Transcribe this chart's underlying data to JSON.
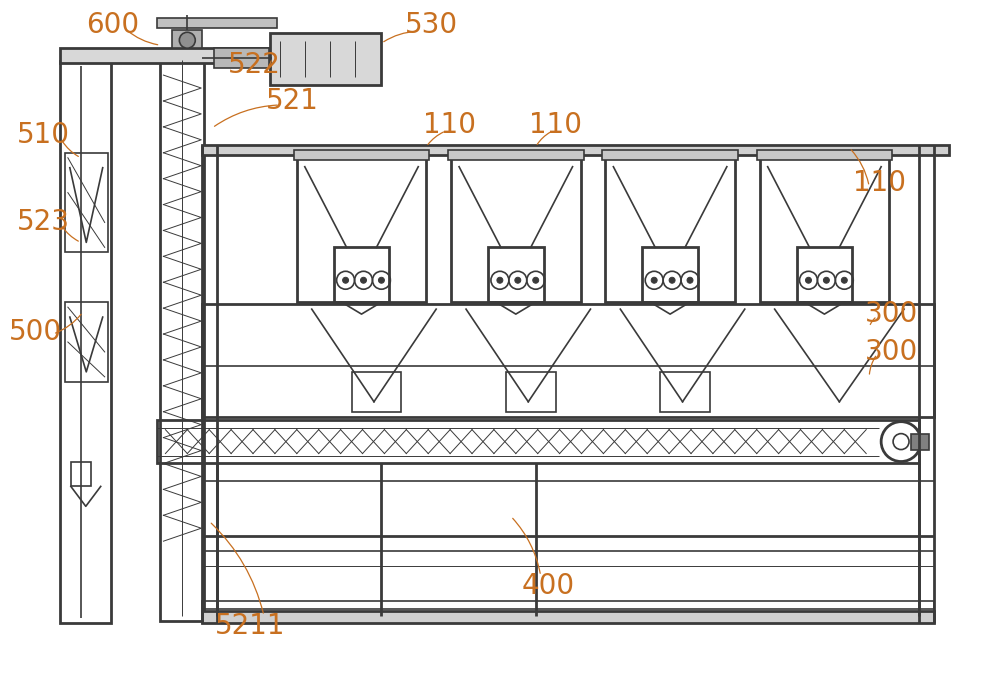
{
  "bg_color": "#ffffff",
  "lc": "#3a3a3a",
  "label_color": "#c87020",
  "fig_width": 10.0,
  "fig_height": 6.82,
  "dpi": 100
}
